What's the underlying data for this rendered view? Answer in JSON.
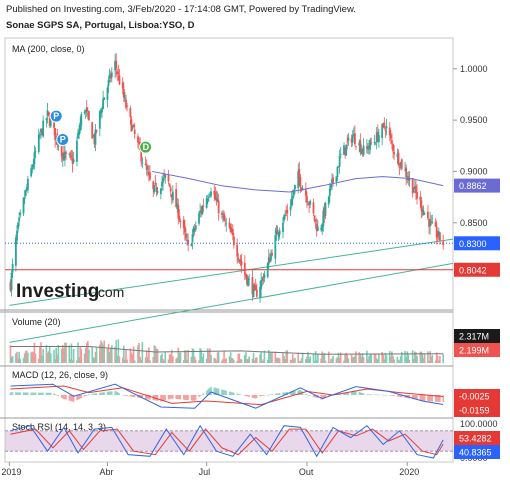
{
  "header": {
    "published_line": "Published on Investing.com, 3/Feb/2020 - 17:14:08 GMT, Powered by TradingView.",
    "instrument_line": "Sonae SGPS SA, Portugal, Lisboa:YSO, D"
  },
  "colors": {
    "bull": "#26a69a",
    "bear": "#ef5350",
    "ma_line": "#6b6bd6",
    "support_line": "#47b398",
    "price_line": "#2962ff",
    "resistance_line": "#e53935",
    "macd_line": "#3366dd",
    "signal_line": "#e53935",
    "stoch_k": "#3366dd",
    "stoch_d": "#e53935",
    "stoch_band": "#d7b7db"
  },
  "logo": {
    "brand": "Investing",
    "domain": ".com"
  },
  "events": [
    {
      "label": "P",
      "date": "2019-02-13",
      "icon": "dividend-marker-icon",
      "color": "#2a8fe0"
    },
    {
      "label": "P",
      "date": "2019-02-19",
      "icon": "dividend-marker-icon",
      "color": "#2a8fe0"
    },
    {
      "label": "D",
      "date": "2019-05-06",
      "icon": "dividend-marker-icon",
      "color": "#4caf50"
    }
  ],
  "chart_data": [
    {
      "type": "candlestick",
      "title": "Sonae SGPS SA, Portugal, Lisboa:YSO, D",
      "indicator_label": "MA (200, close, 0)",
      "ylim": [
        0.765,
        1.03
      ],
      "yticks": [
        "1.0000",
        "0.9500",
        "0.9000",
        "0.8500"
      ],
      "xticks": [
        {
          "date": "2019-01-01",
          "label": "2019"
        },
        {
          "date": "2019-04-01",
          "label": "Abr"
        },
        {
          "date": "2019-07-01",
          "label": "Jul"
        },
        {
          "date": "2019-10-01",
          "label": "Out"
        },
        {
          "date": "2020-01-01",
          "label": "2020"
        }
      ],
      "price_key_points": [
        {
          "date": "2019-01-02",
          "close": 0.79
        },
        {
          "date": "2019-01-08",
          "close": 0.84
        },
        {
          "date": "2019-01-15",
          "close": 0.875
        },
        {
          "date": "2019-01-22",
          "close": 0.905
        },
        {
          "date": "2019-01-29",
          "close": 0.935
        },
        {
          "date": "2019-02-05",
          "close": 0.955
        },
        {
          "date": "2019-02-12",
          "close": 0.935
        },
        {
          "date": "2019-02-20",
          "close": 0.915
        },
        {
          "date": "2019-03-01",
          "close": 0.91
        },
        {
          "date": "2019-03-10",
          "close": 0.965
        },
        {
          "date": "2019-03-20",
          "close": 0.93
        },
        {
          "date": "2019-03-28",
          "close": 0.97
        },
        {
          "date": "2019-04-08",
          "close": 1.005
        },
        {
          "date": "2019-04-20",
          "close": 0.955
        },
        {
          "date": "2019-05-02",
          "close": 0.915
        },
        {
          "date": "2019-05-13",
          "close": 0.88
        },
        {
          "date": "2019-05-25",
          "close": 0.895
        },
        {
          "date": "2019-06-05",
          "close": 0.86
        },
        {
          "date": "2019-06-14",
          "close": 0.825
        },
        {
          "date": "2019-06-25",
          "close": 0.86
        },
        {
          "date": "2019-07-05",
          "close": 0.885
        },
        {
          "date": "2019-07-15",
          "close": 0.855
        },
        {
          "date": "2019-07-25",
          "close": 0.835
        },
        {
          "date": "2019-08-05",
          "close": 0.8
        },
        {
          "date": "2019-08-15",
          "close": 0.78
        },
        {
          "date": "2019-08-25",
          "close": 0.805
        },
        {
          "date": "2019-09-05",
          "close": 0.845
        },
        {
          "date": "2019-09-15",
          "close": 0.865
        },
        {
          "date": "2019-09-23",
          "close": 0.895
        },
        {
          "date": "2019-10-03",
          "close": 0.87
        },
        {
          "date": "2019-10-12",
          "close": 0.84
        },
        {
          "date": "2019-10-22",
          "close": 0.88
        },
        {
          "date": "2019-11-01",
          "close": 0.915
        },
        {
          "date": "2019-11-12",
          "close": 0.935
        },
        {
          "date": "2019-11-22",
          "close": 0.92
        },
        {
          "date": "2019-12-02",
          "close": 0.93
        },
        {
          "date": "2019-12-12",
          "close": 0.945
        },
        {
          "date": "2019-12-20",
          "close": 0.92
        },
        {
          "date": "2019-12-30",
          "close": 0.9
        },
        {
          "date": "2020-01-08",
          "close": 0.88
        },
        {
          "date": "2020-01-17",
          "close": 0.86
        },
        {
          "date": "2020-01-24",
          "close": 0.845
        },
        {
          "date": "2020-02-03",
          "close": 0.83
        }
      ],
      "ma200": [
        {
          "date": "2019-05-12",
          "value": 0.9
        },
        {
          "date": "2019-06-15",
          "value": 0.893
        },
        {
          "date": "2019-07-15",
          "value": 0.886
        },
        {
          "date": "2019-08-15",
          "value": 0.882
        },
        {
          "date": "2019-09-15",
          "value": 0.88
        },
        {
          "date": "2019-10-15",
          "value": 0.886
        },
        {
          "date": "2019-11-15",
          "value": 0.893
        },
        {
          "date": "2019-12-10",
          "value": 0.895
        },
        {
          "date": "2020-01-05",
          "value": 0.893
        },
        {
          "date": "2020-02-03",
          "value": 0.8862
        }
      ],
      "trend_lines": [
        {
          "name": "support-upper",
          "from": {
            "date": "2019-01-01",
            "value": 0.7695
          },
          "to": {
            "date": "2020-02-12",
            "value": 0.834
          }
        },
        {
          "name": "support-lower",
          "from": {
            "date": "2019-01-01",
            "value": 0.7335
          },
          "to": {
            "date": "2020-02-12",
            "value": 0.8104
          }
        }
      ],
      "horizontal_lines": [
        {
          "name": "last-price",
          "value": 0.83,
          "style": "dotted"
        },
        {
          "name": "resistance",
          "value": 0.8042,
          "style": "solid"
        }
      ],
      "axis_flags": [
        {
          "name": "ma",
          "label": "0.8862",
          "value": 0.8862,
          "color": "#6b6bd6"
        },
        {
          "name": "last-price",
          "label": "0.8300",
          "value": 0.83,
          "color": "#2962ff"
        },
        {
          "name": "resistance",
          "label": "0.8042",
          "value": 0.8042,
          "color": "#e53935"
        }
      ],
      "grid": false
    },
    {
      "type": "bar",
      "title": "Volume (20)",
      "volume_key_points": [
        {
          "date": "2019-01-02",
          "value": 0.5
        },
        {
          "date": "2019-02-15",
          "value": 0.55
        },
        {
          "date": "2019-04-05",
          "value": 0.65
        },
        {
          "date": "2019-06-01",
          "value": 0.4
        },
        {
          "date": "2019-08-15",
          "value": 0.35
        },
        {
          "date": "2019-10-15",
          "value": 0.3
        },
        {
          "date": "2019-12-15",
          "value": 0.35
        },
        {
          "date": "2020-02-03",
          "value": 0.3
        }
      ],
      "volume_ma_key_points": [
        {
          "date": "2019-01-02",
          "value": 0.75
        },
        {
          "date": "2019-03-15",
          "value": 0.75
        },
        {
          "date": "2019-05-15",
          "value": 0.5
        },
        {
          "date": "2019-08-01",
          "value": 0.55
        },
        {
          "date": "2019-10-15",
          "value": 0.4
        },
        {
          "date": "2020-02-03",
          "value": 0.42
        }
      ],
      "axis_flags": [
        {
          "name": "volume",
          "label": "2.317M",
          "color": "#1a1a1a"
        },
        {
          "name": "volume-ma",
          "label": "2.199M",
          "color": "#ef5350"
        }
      ]
    },
    {
      "type": "line",
      "title": "MACD (12, 26, close, 9)",
      "ylim": [
        -0.035,
        0.035
      ],
      "macd_key_points": [
        {
          "date": "2019-01-02",
          "value": 0.015
        },
        {
          "date": "2019-02-10",
          "value": 0.018
        },
        {
          "date": "2019-03-01",
          "value": -0.002
        },
        {
          "date": "2019-04-08",
          "value": 0.018
        },
        {
          "date": "2019-05-20",
          "value": -0.02
        },
        {
          "date": "2019-06-20",
          "value": -0.022
        },
        {
          "date": "2019-07-05",
          "value": 0.005
        },
        {
          "date": "2019-08-15",
          "value": -0.022
        },
        {
          "date": "2019-09-25",
          "value": 0.012
        },
        {
          "date": "2019-10-15",
          "value": -0.006
        },
        {
          "date": "2019-11-15",
          "value": 0.014
        },
        {
          "date": "2019-12-15",
          "value": 0.006
        },
        {
          "date": "2020-01-15",
          "value": -0.01
        },
        {
          "date": "2020-02-03",
          "value": -0.0159
        }
      ],
      "signal_key_points": [
        {
          "date": "2019-01-02",
          "value": 0.01
        },
        {
          "date": "2019-02-20",
          "value": 0.015
        },
        {
          "date": "2019-03-15",
          "value": 0.004
        },
        {
          "date": "2019-04-15",
          "value": 0.012
        },
        {
          "date": "2019-05-30",
          "value": -0.014
        },
        {
          "date": "2019-07-01",
          "value": -0.01
        },
        {
          "date": "2019-08-20",
          "value": -0.016
        },
        {
          "date": "2019-10-01",
          "value": 0.006
        },
        {
          "date": "2019-10-25",
          "value": 0.0
        },
        {
          "date": "2019-11-25",
          "value": 0.01
        },
        {
          "date": "2019-12-25",
          "value": 0.004
        },
        {
          "date": "2020-02-03",
          "value": -0.0025
        }
      ],
      "axis_flags": [
        {
          "name": "signal",
          "label": "-0.0025",
          "color": "#e53935"
        },
        {
          "name": "macd",
          "label": "-0.0159",
          "color": "#e53935"
        }
      ]
    },
    {
      "type": "line",
      "title": "Stoch RSI (14, 14, 3, 3)",
      "ylim": [
        0,
        100
      ],
      "yticks": [
        "100.0000",
        "0.0000"
      ],
      "band": [
        20,
        80
      ],
      "stoch_k_key_points": [
        {
          "date": "2019-01-02",
          "value": 80
        },
        {
          "date": "2019-01-20",
          "value": 95
        },
        {
          "date": "2019-02-05",
          "value": 20
        },
        {
          "date": "2019-02-20",
          "value": 90
        },
        {
          "date": "2019-03-05",
          "value": 15
        },
        {
          "date": "2019-03-20",
          "value": 85
        },
        {
          "date": "2019-04-05",
          "value": 90
        },
        {
          "date": "2019-04-20",
          "value": 10
        },
        {
          "date": "2019-05-10",
          "value": 5
        },
        {
          "date": "2019-05-25",
          "value": 85
        },
        {
          "date": "2019-06-10",
          "value": 10
        },
        {
          "date": "2019-06-25",
          "value": 95
        },
        {
          "date": "2019-07-10",
          "value": 20
        },
        {
          "date": "2019-07-25",
          "value": 5
        },
        {
          "date": "2019-08-10",
          "value": 70
        },
        {
          "date": "2019-08-25",
          "value": 10
        },
        {
          "date": "2019-09-10",
          "value": 95
        },
        {
          "date": "2019-09-25",
          "value": 90
        },
        {
          "date": "2019-10-10",
          "value": 5
        },
        {
          "date": "2019-10-25",
          "value": 90
        },
        {
          "date": "2019-11-10",
          "value": 60
        },
        {
          "date": "2019-11-25",
          "value": 95
        },
        {
          "date": "2019-12-10",
          "value": 40
        },
        {
          "date": "2019-12-25",
          "value": 80
        },
        {
          "date": "2020-01-10",
          "value": 10
        },
        {
          "date": "2020-01-25",
          "value": 0
        },
        {
          "date": "2020-02-03",
          "value": 53.4282
        }
      ],
      "stoch_d_key_points": [
        {
          "date": "2019-01-02",
          "value": 70
        },
        {
          "date": "2019-01-25",
          "value": 85
        },
        {
          "date": "2019-02-10",
          "value": 30
        },
        {
          "date": "2019-02-25",
          "value": 80
        },
        {
          "date": "2019-03-10",
          "value": 25
        },
        {
          "date": "2019-03-25",
          "value": 80
        },
        {
          "date": "2019-04-10",
          "value": 85
        },
        {
          "date": "2019-04-25",
          "value": 20
        },
        {
          "date": "2019-05-15",
          "value": 10
        },
        {
          "date": "2019-05-30",
          "value": 75
        },
        {
          "date": "2019-06-15",
          "value": 20
        },
        {
          "date": "2019-06-30",
          "value": 85
        },
        {
          "date": "2019-07-15",
          "value": 30
        },
        {
          "date": "2019-07-30",
          "value": 10
        },
        {
          "date": "2019-08-15",
          "value": 60
        },
        {
          "date": "2019-08-30",
          "value": 20
        },
        {
          "date": "2019-09-15",
          "value": 85
        },
        {
          "date": "2019-09-30",
          "value": 85
        },
        {
          "date": "2019-10-15",
          "value": 15
        },
        {
          "date": "2019-10-30",
          "value": 80
        },
        {
          "date": "2019-11-15",
          "value": 65
        },
        {
          "date": "2019-11-30",
          "value": 85
        },
        {
          "date": "2019-12-15",
          "value": 50
        },
        {
          "date": "2019-12-30",
          "value": 70
        },
        {
          "date": "2020-01-15",
          "value": 20
        },
        {
          "date": "2020-01-28",
          "value": 10
        },
        {
          "date": "2020-02-03",
          "value": 40.8365
        }
      ],
      "axis_flags": [
        {
          "name": "stoch-k",
          "label": "53.4282",
          "color": "#e53935"
        },
        {
          "name": "stoch-d",
          "label": "40.8365",
          "color": "#2962ff"
        }
      ]
    }
  ]
}
